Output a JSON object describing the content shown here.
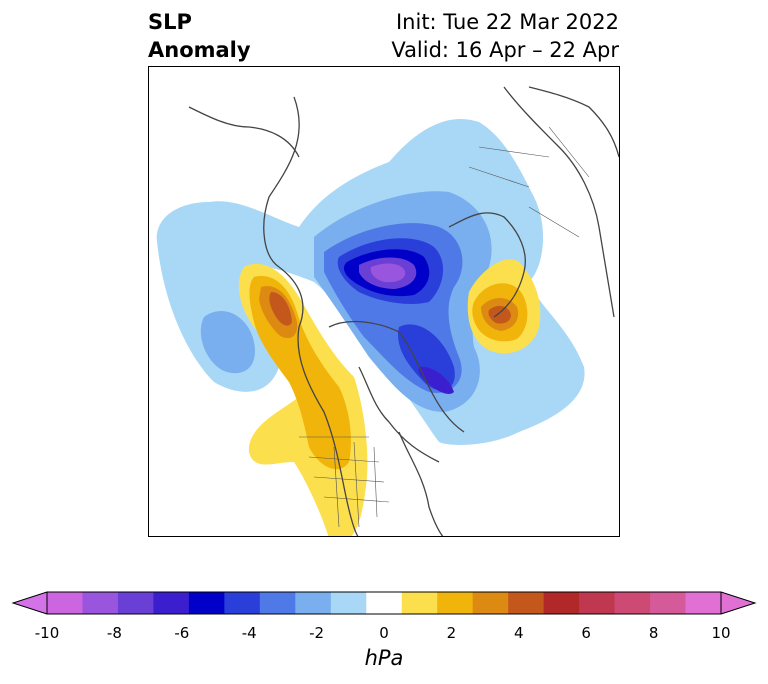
{
  "title": {
    "left_line1": "SLP",
    "left_line2": "Anomaly",
    "init": "Init: Tue 22 Mar 2022",
    "valid": "Valid: 16 Apr – 22 Apr"
  },
  "colorbar": {
    "unit": "hPa",
    "ticks": [
      "-10",
      "-8",
      "-6",
      "-4",
      "-2",
      "0",
      "2",
      "4",
      "6",
      "8",
      "10"
    ],
    "colors": [
      "#cc66e0",
      "#9955dd",
      "#6a3fd6",
      "#3b1fcf",
      "#0000c8",
      "#2a3ed9",
      "#4f79e6",
      "#79afee",
      "#a9d8f7",
      "#ffffff",
      "#fcdf4c",
      "#f0b40a",
      "#dd8a12",
      "#c4581c",
      "#b02828",
      "#c0384f",
      "#cc4a73",
      "#d45a99",
      "#e070d4"
    ],
    "left_extend_color": "#d472e8",
    "right_extend_color": "#e070d4"
  }
}
